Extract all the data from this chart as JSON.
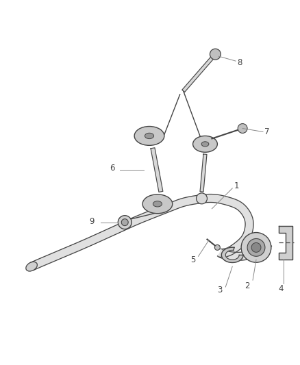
{
  "bg_color": "#ffffff",
  "line_color": "#444444",
  "lw_bar": 2.0,
  "lw_thin": 1.0,
  "fig_width": 4.38,
  "fig_height": 5.33,
  "dpi": 100
}
